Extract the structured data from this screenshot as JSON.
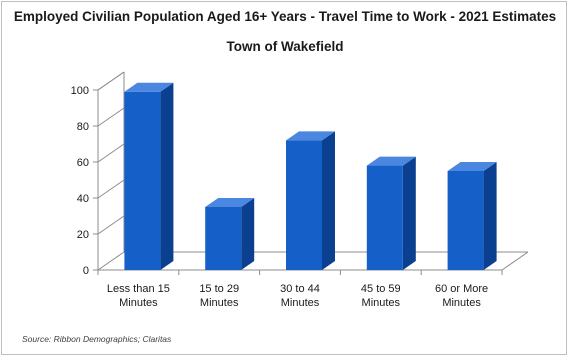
{
  "chart_data": {
    "type": "bar",
    "title": "Employed Civilian Population Aged 16+ Years - Travel Time to Work - 2021 Estimates",
    "subtitle": "Town of Wakefield",
    "categories": [
      [
        "Less than 15",
        "Minutes"
      ],
      [
        "15 to 29",
        "Minutes"
      ],
      [
        "30 to 44",
        "Minutes"
      ],
      [
        "45 to 59",
        "Minutes"
      ],
      [
        "60 or More",
        "Minutes"
      ]
    ],
    "values": [
      99,
      35,
      72,
      58,
      55
    ],
    "ylim": [
      0,
      100
    ],
    "yticks": [
      0,
      20,
      40,
      60,
      80,
      100
    ],
    "grid": false,
    "style": "3d",
    "bar_color": "#1560c8",
    "source": "Source: Ribbon Demographics; Claritas"
  }
}
